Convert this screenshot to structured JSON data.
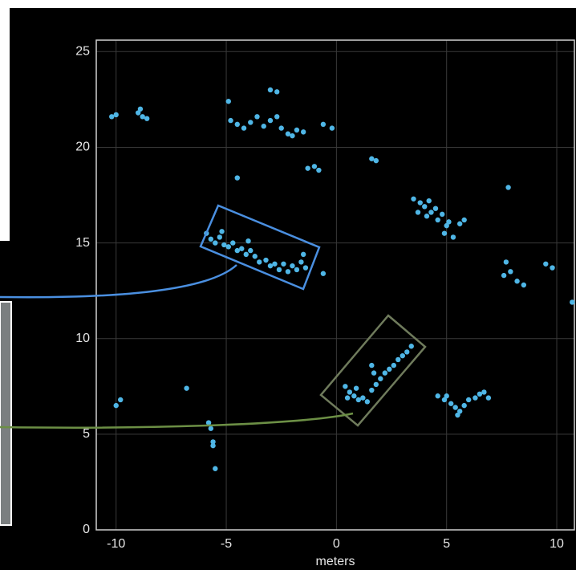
{
  "chart_data": {
    "type": "scatter",
    "xlabel": "meters",
    "color": "#4fb6e6",
    "grid": true,
    "xlim": [
      -10.9,
      10.8
    ],
    "ylim": [
      0,
      25.6
    ],
    "xticks": [
      -10,
      -5,
      0,
      5,
      10
    ],
    "yticks": [
      0,
      5,
      10,
      15,
      20,
      25
    ],
    "x": [
      -10.2,
      -10.0,
      -9.0,
      -8.8,
      -8.6,
      -8.9,
      -5.9,
      -5.7,
      -5.5,
      -5.3,
      -5.1,
      -4.9,
      -4.7,
      -4.5,
      -4.3,
      -4.1,
      -3.9,
      -3.7,
      -3.5,
      -3.2,
      -3.0,
      -2.8,
      -2.6,
      -2.4,
      -2.2,
      -2.0,
      -1.8,
      -1.6,
      -1.4,
      -5.2,
      -4.0,
      -1.5,
      -0.6,
      0.4,
      0.6,
      0.8,
      1.0,
      1.2,
      1.4,
      0.5,
      0.9,
      1.6,
      1.8,
      2.0,
      2.2,
      2.4,
      2.6,
      2.8,
      3.0,
      3.2,
      3.4,
      1.7,
      1.6,
      -4.8,
      -4.5,
      -4.2,
      -3.9,
      -3.6,
      -3.3,
      -3.0,
      -2.7,
      -2.5,
      -2.2,
      -2.0,
      -1.8,
      -1.5,
      -0.6,
      -0.2,
      -4.9,
      -3.0,
      -2.7,
      -1.0,
      -0.8,
      -1.3,
      -4.5,
      1.6,
      1.8,
      3.5,
      3.8,
      4.0,
      4.2,
      4.3,
      4.5,
      4.6,
      4.8,
      5.0,
      5.1,
      4.9,
      5.3,
      5.6,
      4.1,
      3.7,
      5.8,
      7.8,
      7.9,
      8.2,
      8.5,
      7.6,
      7.7,
      9.5,
      9.8,
      10.7,
      4.6,
      4.9,
      5.2,
      5.4,
      5.6,
      5.8,
      6.0,
      6.3,
      6.5,
      6.7,
      6.9,
      5.5,
      5.0,
      -6.8,
      -10.0,
      -9.8,
      -5.8,
      -5.7,
      -5.6,
      -5.6,
      -5.5
    ],
    "values": [
      21.6,
      21.7,
      21.8,
      21.6,
      21.5,
      22.0,
      15.5,
      15.2,
      15.0,
      15.3,
      14.9,
      14.8,
      15.0,
      14.6,
      14.7,
      14.4,
      14.6,
      14.3,
      14.0,
      14.1,
      13.8,
      13.9,
      13.6,
      13.9,
      13.5,
      13.8,
      13.6,
      14.0,
      13.7,
      15.6,
      15.1,
      14.4,
      13.4,
      7.5,
      7.2,
      7.0,
      6.8,
      6.9,
      6.7,
      6.9,
      7.4,
      7.3,
      7.6,
      7.9,
      8.2,
      8.4,
      8.6,
      8.9,
      9.1,
      9.3,
      9.6,
      8.2,
      8.6,
      21.4,
      21.2,
      21.0,
      21.3,
      21.6,
      21.1,
      21.4,
      21.6,
      21.0,
      20.7,
      20.6,
      20.9,
      20.8,
      21.2,
      21.0,
      22.4,
      23.0,
      22.9,
      19.0,
      18.8,
      18.9,
      18.4,
      19.4,
      19.3,
      17.3,
      17.1,
      16.9,
      17.2,
      16.6,
      16.8,
      16.2,
      16.5,
      15.9,
      16.1,
      15.5,
      15.3,
      16.0,
      16.4,
      16.6,
      16.2,
      17.9,
      13.5,
      13.0,
      12.8,
      13.3,
      14.0,
      13.9,
      13.7,
      11.9,
      7.0,
      6.8,
      6.6,
      6.4,
      6.2,
      6.5,
      6.8,
      6.9,
      7.1,
      7.2,
      6.9,
      6.0,
      7.0,
      7.4,
      6.5,
      6.8,
      5.6,
      5.3,
      4.6,
      4.4,
      3.2
    ]
  }
}
